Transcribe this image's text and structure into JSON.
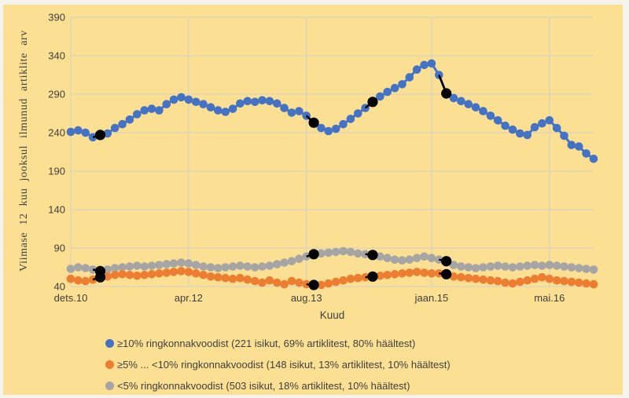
{
  "y_axis": {
    "title": "Viimase 12 kuu jooksul ilmunud artiklite arv"
  },
  "x_axis": {
    "title": "Kuud"
  },
  "legend": {
    "items": [
      {
        "label": "≥10% ringkonnakvoodist (221 isikut, 69% artiklitest, 80% häältest)"
      },
      {
        "label": "≥5% ... <10% ringkonnakvoodist (148 isikut, 13% artiklitest, 10% häältest)"
      },
      {
        "label": "<5% ringkonnakvoodist (503 isikut, 18% artiklitest, 10% häältest)"
      }
    ]
  },
  "colors": {
    "background": "#fbdf92",
    "frame_edge": "#f5f3ec",
    "gridline": "#d2cfc8",
    "text": "#3f3f3f",
    "series_blue": "#4472c4",
    "series_orange": "#ed7d31",
    "series_gray": "#a5a5a5",
    "highlight": "#000000"
  },
  "chart_data": {
    "type": "line",
    "title": "",
    "xlabel": "Kuud",
    "ylabel": "Viimase 12 kuu jooksul ilmunud artiklite arv",
    "ylim": [
      40,
      390
    ],
    "yticks": [
      40,
      90,
      140,
      190,
      240,
      290,
      340,
      390
    ],
    "grid": true,
    "legend_position": "bottom",
    "x_description": "monthly points from dets.10 onward",
    "x_ticks": [
      {
        "label": "dets.10",
        "index": 0
      },
      {
        "label": "apr.12",
        "index": 16
      },
      {
        "label": "aug.13",
        "index": 32
      },
      {
        "label": "jaan.15",
        "index": 49
      },
      {
        "label": "mai.16",
        "index": 65
      }
    ],
    "highlight_indices": [
      4,
      33,
      41,
      51
    ],
    "series": [
      {
        "name": "≥10% ringkonnakvoodist",
        "color": "#4472c4",
        "values": [
          241,
          243,
          240,
          234,
          237,
          239,
          246,
          251,
          257,
          264,
          269,
          271,
          269,
          277,
          283,
          286,
          283,
          280,
          277,
          273,
          269,
          267,
          271,
          278,
          281,
          280,
          282,
          281,
          278,
          272,
          266,
          268,
          262,
          253,
          246,
          242,
          245,
          251,
          258,
          265,
          272,
          280,
          287,
          293,
          298,
          303,
          312,
          322,
          328,
          330,
          315,
          291,
          285,
          281,
          277,
          273,
          268,
          262,
          256,
          249,
          244,
          239,
          237,
          247,
          252,
          256,
          246,
          236,
          224,
          222,
          213,
          206
        ]
      },
      {
        "name": "≥5% ... <10% ringkonnakvoodist",
        "color": "#ed7d31",
        "values": [
          50,
          48,
          47,
          49,
          52,
          53,
          55,
          56,
          55,
          54,
          55,
          56,
          57,
          58,
          59,
          60,
          59,
          57,
          55,
          53,
          52,
          51,
          50,
          51,
          49,
          47,
          45,
          48,
          45,
          43,
          47,
          45,
          43,
          42,
          42,
          44,
          46,
          48,
          50,
          51,
          52,
          53,
          54,
          55,
          56,
          57,
          58,
          59,
          58,
          57,
          57,
          56,
          53,
          52,
          51,
          50,
          49,
          48,
          47,
          45,
          44,
          46,
          48,
          50,
          52,
          50,
          48,
          47,
          46,
          45,
          44,
          43
        ]
      },
      {
        "name": "<5% ringkonnakvoodist",
        "color": "#a5a5a5",
        "values": [
          63,
          65,
          64,
          62,
          60,
          62,
          64,
          65,
          66,
          67,
          66,
          67,
          68,
          69,
          70,
          71,
          70,
          68,
          66,
          65,
          64,
          65,
          66,
          67,
          66,
          65,
          66,
          67,
          69,
          71,
          73,
          76,
          79,
          82,
          83,
          84,
          85,
          86,
          85,
          83,
          82,
          81,
          79,
          77,
          75,
          74,
          75,
          77,
          79,
          77,
          75,
          73,
          68,
          66,
          65,
          64,
          65,
          66,
          67,
          66,
          65,
          66,
          67,
          68,
          67,
          68,
          67,
          66,
          65,
          64,
          63,
          62
        ]
      }
    ]
  }
}
